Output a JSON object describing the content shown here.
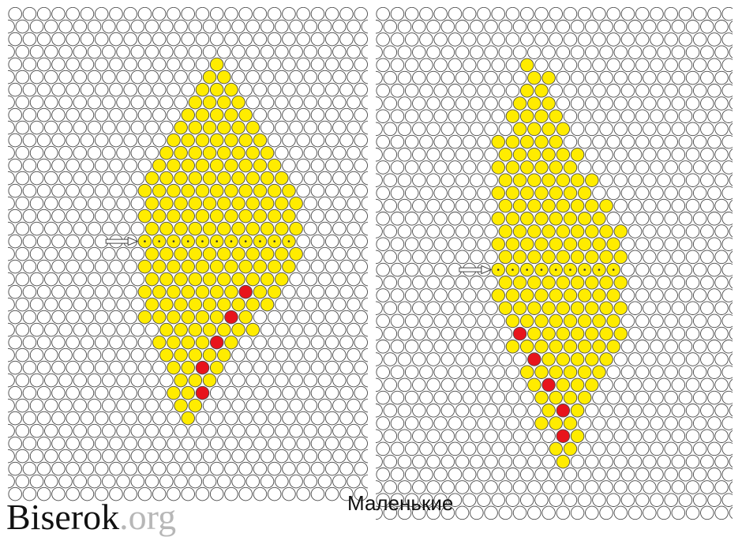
{
  "caption": "Маленькие",
  "watermark": {
    "name": "Biserok",
    "extension": ".org"
  },
  "colors": {
    "empty": "#ffffff",
    "outline": "#4a4a4a",
    "yellow": "#ffec00",
    "red": "#e8141c",
    "center_dot": "#333333",
    "arrow": "#333333"
  },
  "patterns": [
    {
      "id": "left",
      "rows": [
        {
          "cols": [
            14
          ]
        },
        {
          "cols": [
            13,
            14
          ]
        },
        {
          "cols": [
            13,
            14,
            15
          ]
        },
        {
          "cols": [
            12,
            13,
            14,
            15
          ]
        },
        {
          "cols": [
            12,
            13,
            14,
            15,
            16
          ]
        },
        {
          "cols": [
            11,
            12,
            13,
            14,
            15,
            16
          ]
        },
        {
          "cols": [
            11,
            12,
            13,
            14,
            15,
            16,
            17
          ]
        },
        {
          "cols": [
            10,
            11,
            12,
            13,
            14,
            15,
            16,
            17
          ]
        },
        {
          "cols": [
            10,
            11,
            12,
            13,
            14,
            15,
            16,
            17,
            18
          ]
        },
        {
          "cols": [
            9,
            10,
            11,
            12,
            13,
            14,
            15,
            16,
            17,
            18
          ]
        },
        {
          "cols": [
            9,
            10,
            11,
            12,
            13,
            14,
            15,
            16,
            17,
            18,
            19
          ]
        },
        {
          "cols": [
            9,
            10,
            11,
            12,
            13,
            14,
            15,
            16,
            17,
            18,
            19
          ]
        },
        {
          "cols": [
            9,
            10,
            11,
            12,
            13,
            14,
            15,
            16,
            17,
            18,
            19
          ]
        },
        {
          "cols": [
            9,
            10,
            11,
            12,
            13,
            14,
            15,
            16,
            17,
            18,
            19
          ]
        },
        {
          "cols": [
            9,
            10,
            11,
            12,
            13,
            14,
            15,
            16,
            17,
            18,
            19
          ],
          "dotted": true,
          "arrow": true
        },
        {
          "cols": [
            9,
            10,
            11,
            12,
            13,
            14,
            15,
            16,
            17,
            18,
            19
          ]
        },
        {
          "cols": [
            9,
            10,
            11,
            12,
            13,
            14,
            15,
            16,
            17,
            18,
            19
          ]
        },
        {
          "cols": [
            9,
            10,
            11,
            12,
            13,
            14,
            15,
            16,
            17,
            18
          ]
        },
        {
          "cols": [
            9,
            10,
            11,
            12,
            13,
            14,
            15,
            16,
            17,
            18
          ],
          "red": [
            16
          ]
        },
        {
          "cols": [
            9,
            10,
            11,
            12,
            13,
            14,
            15,
            16,
            17
          ]
        },
        {
          "cols": [
            9,
            10,
            11,
            12,
            13,
            14,
            15,
            16
          ],
          "red": [
            15
          ]
        },
        {
          "cols": [
            10,
            11,
            12,
            13,
            14,
            15,
            16
          ]
        },
        {
          "cols": [
            10,
            11,
            12,
            13,
            14,
            15
          ],
          "red": [
            14
          ]
        },
        {
          "cols": [
            10,
            11,
            12,
            13,
            14
          ]
        },
        {
          "cols": [
            11,
            12,
            13,
            14
          ],
          "red": [
            13
          ]
        },
        {
          "cols": [
            11,
            12,
            13
          ]
        },
        {
          "cols": [
            11,
            12,
            13
          ],
          "red": [
            13
          ]
        },
        {
          "cols": [
            11,
            12
          ]
        },
        {
          "cols": [
            12
          ]
        }
      ]
    },
    {
      "id": "right",
      "rows": [
        {
          "cols": [
            10
          ]
        },
        {
          "cols": [
            10,
            11
          ]
        },
        {
          "cols": [
            10,
            11
          ]
        },
        {
          "cols": [
            9,
            10,
            11
          ]
        },
        {
          "cols": [
            9,
            10,
            11,
            12
          ]
        },
        {
          "cols": [
            9,
            10,
            11,
            12
          ]
        },
        {
          "cols": [
            8,
            9,
            10,
            11,
            12
          ]
        },
        {
          "cols": [
            8,
            9,
            10,
            11,
            12,
            13
          ]
        },
        {
          "cols": [
            8,
            9,
            10,
            11,
            12,
            13
          ]
        },
        {
          "cols": [
            8,
            9,
            10,
            11,
            12,
            13,
            14
          ]
        },
        {
          "cols": [
            8,
            9,
            10,
            11,
            12,
            13,
            14
          ]
        },
        {
          "cols": [
            8,
            9,
            10,
            11,
            12,
            13,
            14,
            15
          ]
        },
        {
          "cols": [
            8,
            9,
            10,
            11,
            12,
            13,
            14,
            15
          ]
        },
        {
          "cols": [
            8,
            9,
            10,
            11,
            12,
            13,
            14,
            15,
            16
          ]
        },
        {
          "cols": [
            8,
            9,
            10,
            11,
            12,
            13,
            14,
            15,
            16
          ]
        },
        {
          "cols": [
            8,
            9,
            10,
            11,
            12,
            13,
            14,
            15,
            16
          ]
        },
        {
          "cols": [
            8,
            9,
            10,
            11,
            12,
            13,
            14,
            15,
            16
          ],
          "dotted": true,
          "arrow": true
        },
        {
          "cols": [
            8,
            9,
            10,
            11,
            12,
            13,
            14,
            15,
            16
          ]
        },
        {
          "cols": [
            8,
            9,
            10,
            11,
            12,
            13,
            14,
            15,
            16
          ]
        },
        {
          "cols": [
            8,
            9,
            10,
            11,
            12,
            13,
            14,
            15,
            16
          ]
        },
        {
          "cols": [
            9,
            10,
            11,
            12,
            13,
            14,
            15,
            16
          ]
        },
        {
          "cols": [
            9,
            10,
            11,
            12,
            13,
            14,
            15,
            16
          ],
          "red": [
            9
          ]
        },
        {
          "cols": [
            9,
            10,
            11,
            12,
            13,
            14,
            15,
            16
          ]
        },
        {
          "cols": [
            10,
            11,
            12,
            13,
            14,
            15
          ],
          "red": [
            10
          ]
        },
        {
          "cols": [
            10,
            11,
            12,
            13,
            14,
            15
          ]
        },
        {
          "cols": [
            10,
            11,
            12,
            13,
            14
          ],
          "red": [
            11
          ]
        },
        {
          "cols": [
            11,
            12,
            13,
            14
          ]
        },
        {
          "cols": [
            11,
            12,
            13
          ],
          "red": [
            12
          ]
        },
        {
          "cols": [
            11,
            12,
            13
          ]
        },
        {
          "cols": [
            12,
            13
          ],
          "red": [
            12
          ]
        },
        {
          "cols": [
            12,
            13
          ]
        },
        {
          "cols": [
            12
          ]
        }
      ]
    }
  ]
}
